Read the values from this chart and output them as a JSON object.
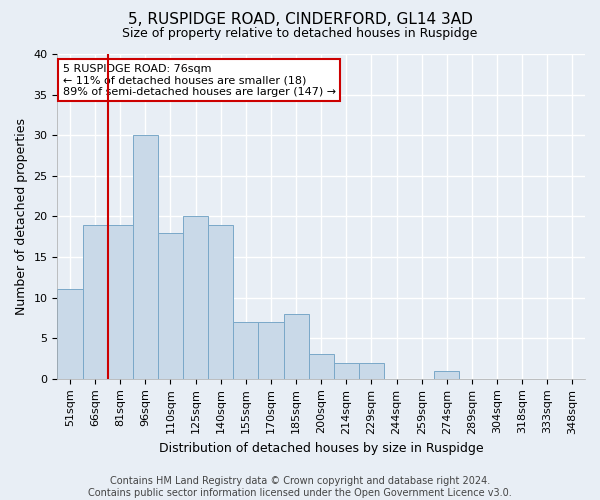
{
  "title": "5, RUSPIDGE ROAD, CINDERFORD, GL14 3AD",
  "subtitle": "Size of property relative to detached houses in Ruspidge",
  "xlabel": "Distribution of detached houses by size in Ruspidge",
  "ylabel": "Number of detached properties",
  "bar_color": "#c9d9e8",
  "bar_edge_color": "#7aa8c8",
  "vline_x": 1.5,
  "vline_color": "#cc0000",
  "bins": [
    "51sqm",
    "66sqm",
    "81sqm",
    "96sqm",
    "110sqm",
    "125sqm",
    "140sqm",
    "155sqm",
    "170sqm",
    "185sqm",
    "200sqm",
    "214sqm",
    "229sqm",
    "244sqm",
    "259sqm",
    "274sqm",
    "289sqm",
    "304sqm",
    "318sqm",
    "333sqm",
    "348sqm"
  ],
  "values": [
    11,
    19,
    19,
    30,
    18,
    20,
    19,
    7,
    7,
    8,
    3,
    2,
    2,
    0,
    0,
    1,
    0,
    0,
    0,
    0,
    0
  ],
  "ylim": [
    0,
    40
  ],
  "yticks": [
    0,
    5,
    10,
    15,
    20,
    25,
    30,
    35,
    40
  ],
  "annotation_text": "5 RUSPIDGE ROAD: 76sqm\n← 11% of detached houses are smaller (18)\n89% of semi-detached houses are larger (147) →",
  "footer_text": "Contains HM Land Registry data © Crown copyright and database right 2024.\nContains public sector information licensed under the Open Government Licence v3.0.",
  "background_color": "#e8eef5",
  "plot_bg_color": "#e8eef5",
  "grid_color": "#ffffff",
  "title_fontsize": 11,
  "subtitle_fontsize": 9,
  "ylabel_fontsize": 9,
  "xlabel_fontsize": 9,
  "tick_fontsize": 8,
  "annotation_fontsize": 8,
  "footer_fontsize": 7
}
